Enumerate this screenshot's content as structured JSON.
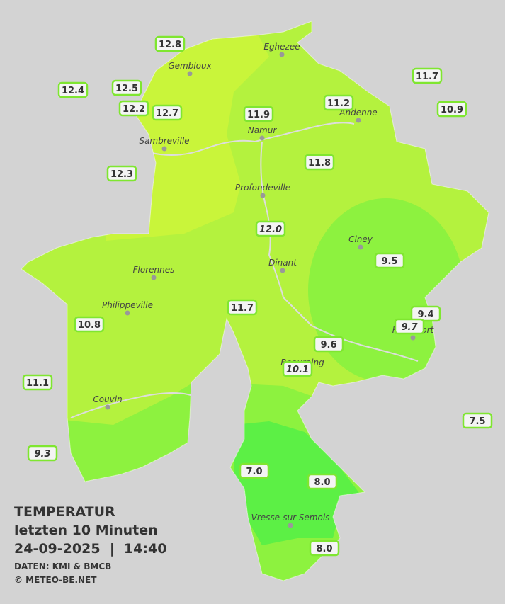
{
  "title": {
    "line1": "TEMPERATUR",
    "line2": "letzten 10 Minuten",
    "line3": "24-09-2025  |  14:40",
    "source": "DATEN: KMI & BMCB",
    "copyright": "© METEO-BE.NET"
  },
  "cities": [
    "Eghezee",
    "Gembloux",
    "Andenne",
    "Namur",
    "Sambreville",
    "Profondeville",
    "Ciney",
    "Dinant",
    "Florennes",
    "Philippeville",
    "Beauraing",
    "Rochefort",
    "Couvin",
    "Vresse-sur-Semois"
  ],
  "stations": [
    "12.8",
    "12.4",
    "12.5",
    "12.2",
    "12.7",
    "11.9",
    "11.2",
    "11.7",
    "10.9",
    "11.8",
    "12.3",
    "12.0",
    "9.5",
    "9.4",
    "9.7",
    "11.7",
    "10.8",
    "9.6",
    "10.1",
    "11.1",
    "7.5",
    "9.3",
    "7.0",
    "8.0",
    "8.0"
  ]
}
